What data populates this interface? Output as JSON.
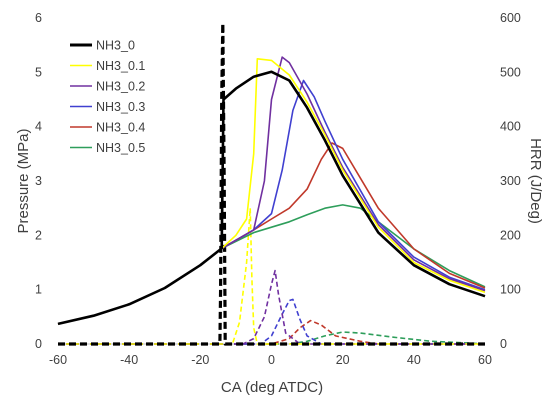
{
  "chart_data": {
    "type": "line",
    "xlabel": "CA (deg ATDC)",
    "ylabel_left": "Pressure (MPa)",
    "ylabel_right": "HRR (J/Deg)",
    "xlim": [
      -60,
      60
    ],
    "ylim_left": [
      0,
      6
    ],
    "ylim_right": [
      0,
      600
    ],
    "xticks": [
      -60,
      -40,
      -20,
      0,
      20,
      40,
      60
    ],
    "yticks_left": [
      0,
      1,
      2,
      3,
      4,
      5,
      6
    ],
    "yticks_right": [
      0,
      100,
      200,
      300,
      400,
      500,
      600
    ],
    "grid": false,
    "legend_position": "top-left",
    "legend": [
      "NH3_0",
      "NH3_0.1",
      "NH3_0.2",
      "NH3_0.3",
      "NH3_0.4",
      "NH3_0.5"
    ],
    "colors": [
      "#000000",
      "#FFFF00",
      "#7030A0",
      "#4040D0",
      "#C0392B",
      "#2E9E5B"
    ],
    "series": [
      {
        "name": "NH3_0",
        "axis": "left",
        "pressure": [
          [
            -60,
            0.37
          ],
          [
            -50,
            0.52
          ],
          [
            -40,
            0.73
          ],
          [
            -30,
            1.03
          ],
          [
            -20,
            1.45
          ],
          [
            -14,
            1.76
          ],
          [
            -13.5,
            4.5
          ],
          [
            -10,
            4.7
          ],
          [
            -5,
            4.92
          ],
          [
            0,
            5.01
          ],
          [
            5,
            4.85
          ],
          [
            10,
            4.35
          ],
          [
            15,
            3.75
          ],
          [
            20,
            3.1
          ],
          [
            30,
            2.05
          ],
          [
            40,
            1.45
          ],
          [
            50,
            1.1
          ],
          [
            60,
            0.88
          ]
        ],
        "hrr": [
          [
            -60,
            0
          ],
          [
            -14.5,
            0
          ],
          [
            -14.3,
            100
          ],
          [
            -14,
            450
          ],
          [
            -13.7,
            590
          ],
          [
            -13.3,
            300
          ],
          [
            -13,
            0
          ],
          [
            60,
            0
          ]
        ]
      },
      {
        "name": "NH3_0.1",
        "axis": "left",
        "pressure": [
          [
            -60,
            0.37
          ],
          [
            -50,
            0.52
          ],
          [
            -40,
            0.73
          ],
          [
            -30,
            1.03
          ],
          [
            -20,
            1.45
          ],
          [
            -14,
            1.76
          ],
          [
            -10,
            2.0
          ],
          [
            -7,
            2.3
          ],
          [
            -5,
            3.5
          ],
          [
            -4,
            5.25
          ],
          [
            0,
            5.22
          ],
          [
            5,
            4.95
          ],
          [
            10,
            4.45
          ],
          [
            15,
            3.85
          ],
          [
            20,
            3.2
          ],
          [
            30,
            2.15
          ],
          [
            40,
            1.5
          ],
          [
            50,
            1.17
          ],
          [
            60,
            0.95
          ]
        ],
        "hrr": [
          [
            -60,
            0
          ],
          [
            -11,
            0
          ],
          [
            -9,
            40
          ],
          [
            -7,
            150
          ],
          [
            -6,
            250
          ],
          [
            -5.5,
            120
          ],
          [
            -5,
            30
          ],
          [
            -4,
            0
          ],
          [
            60,
            0
          ]
        ]
      },
      {
        "name": "NH3_0.2",
        "axis": "left",
        "pressure": [
          [
            -60,
            0.37
          ],
          [
            -50,
            0.52
          ],
          [
            -40,
            0.73
          ],
          [
            -30,
            1.03
          ],
          [
            -20,
            1.45
          ],
          [
            -14,
            1.76
          ],
          [
            -5,
            2.1
          ],
          [
            -2,
            3.0
          ],
          [
            0,
            4.5
          ],
          [
            3,
            5.28
          ],
          [
            5,
            5.18
          ],
          [
            10,
            4.6
          ],
          [
            15,
            3.9
          ],
          [
            20,
            3.25
          ],
          [
            30,
            2.2
          ],
          [
            40,
            1.55
          ],
          [
            50,
            1.2
          ],
          [
            60,
            0.98
          ]
        ],
        "hrr": [
          [
            -60,
            0
          ],
          [
            -8,
            0
          ],
          [
            -5,
            10
          ],
          [
            -2,
            50
          ],
          [
            0,
            110
          ],
          [
            1,
            135
          ],
          [
            2,
            90
          ],
          [
            4,
            20
          ],
          [
            8,
            0
          ],
          [
            60,
            0
          ]
        ]
      },
      {
        "name": "NH3_0.3",
        "axis": "left",
        "pressure": [
          [
            -60,
            0.37
          ],
          [
            -50,
            0.52
          ],
          [
            -40,
            0.73
          ],
          [
            -30,
            1.03
          ],
          [
            -20,
            1.45
          ],
          [
            -14,
            1.76
          ],
          [
            -5,
            2.1
          ],
          [
            0,
            2.4
          ],
          [
            3,
            3.2
          ],
          [
            6,
            4.3
          ],
          [
            9,
            4.85
          ],
          [
            12,
            4.55
          ],
          [
            15,
            4.1
          ],
          [
            20,
            3.4
          ],
          [
            30,
            2.25
          ],
          [
            40,
            1.6
          ],
          [
            50,
            1.23
          ],
          [
            60,
            1.0
          ]
        ],
        "hrr": [
          [
            -60,
            0
          ],
          [
            -3,
            0
          ],
          [
            0,
            15
          ],
          [
            3,
            55
          ],
          [
            5,
            80
          ],
          [
            6,
            82
          ],
          [
            8,
            45
          ],
          [
            10,
            15
          ],
          [
            14,
            0
          ],
          [
            60,
            0
          ]
        ]
      },
      {
        "name": "NH3_0.4",
        "axis": "left",
        "pressure": [
          [
            -60,
            0.37
          ],
          [
            -50,
            0.52
          ],
          [
            -40,
            0.73
          ],
          [
            -30,
            1.03
          ],
          [
            -20,
            1.45
          ],
          [
            -14,
            1.76
          ],
          [
            -5,
            2.1
          ],
          [
            0,
            2.3
          ],
          [
            5,
            2.5
          ],
          [
            10,
            2.85
          ],
          [
            14,
            3.4
          ],
          [
            17,
            3.7
          ],
          [
            20,
            3.6
          ],
          [
            25,
            3.05
          ],
          [
            30,
            2.5
          ],
          [
            40,
            1.75
          ],
          [
            50,
            1.3
          ],
          [
            60,
            1.03
          ]
        ],
        "hrr": [
          [
            -60,
            0
          ],
          [
            0,
            0
          ],
          [
            5,
            10
          ],
          [
            8,
            30
          ],
          [
            11,
            43
          ],
          [
            14,
            35
          ],
          [
            18,
            15
          ],
          [
            25,
            5
          ],
          [
            30,
            0
          ],
          [
            60,
            0
          ]
        ]
      },
      {
        "name": "NH3_0.5",
        "axis": "left",
        "pressure": [
          [
            -60,
            0.37
          ],
          [
            -50,
            0.52
          ],
          [
            -40,
            0.73
          ],
          [
            -30,
            1.03
          ],
          [
            -20,
            1.45
          ],
          [
            -14,
            1.76
          ],
          [
            -5,
            2.05
          ],
          [
            0,
            2.15
          ],
          [
            5,
            2.25
          ],
          [
            10,
            2.38
          ],
          [
            15,
            2.5
          ],
          [
            20,
            2.56
          ],
          [
            25,
            2.5
          ],
          [
            30,
            2.25
          ],
          [
            40,
            1.75
          ],
          [
            50,
            1.35
          ],
          [
            60,
            1.05
          ]
        ],
        "hrr": [
          [
            -60,
            0
          ],
          [
            5,
            0
          ],
          [
            10,
            5
          ],
          [
            15,
            15
          ],
          [
            20,
            22
          ],
          [
            25,
            20
          ],
          [
            35,
            12
          ],
          [
            45,
            5
          ],
          [
            55,
            2
          ],
          [
            60,
            0
          ]
        ]
      }
    ]
  }
}
